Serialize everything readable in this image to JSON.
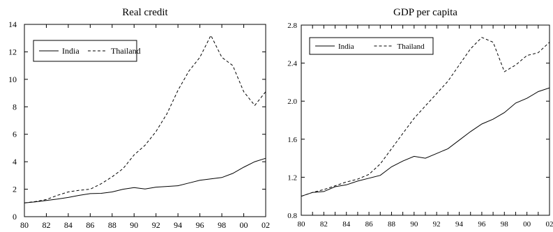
{
  "chart_data": [
    {
      "type": "line",
      "title": "Real credit",
      "xlabel": "",
      "ylabel": "",
      "x": [
        1980,
        1981,
        1982,
        1983,
        1984,
        1985,
        1986,
        1987,
        1988,
        1989,
        1990,
        1991,
        1992,
        1993,
        1994,
        1995,
        1996,
        1997,
        1998,
        1999,
        2000,
        2001,
        2002
      ],
      "xlim": [
        1980,
        2002
      ],
      "ylim": [
        0,
        14
      ],
      "x_ticks": [
        1980,
        1982,
        1984,
        1986,
        1988,
        1990,
        1992,
        1994,
        1996,
        1998,
        2000,
        2002
      ],
      "x_tick_labels": [
        "80",
        "82",
        "84",
        "86",
        "88",
        "90",
        "92",
        "94",
        "96",
        "98",
        "00",
        "02"
      ],
      "y_ticks": [
        0,
        2,
        4,
        6,
        8,
        10,
        12,
        14
      ],
      "y_tick_labels": [
        "0",
        "2",
        "4",
        "6",
        "8",
        "10",
        "12",
        "14"
      ],
      "legend_position": "top-left",
      "series": [
        {
          "name": "India",
          "style": "solid",
          "values": [
            1.0,
            1.08,
            1.18,
            1.28,
            1.4,
            1.55,
            1.68,
            1.7,
            1.8,
            2.0,
            2.12,
            2.02,
            2.15,
            2.2,
            2.25,
            2.45,
            2.65,
            2.75,
            2.85,
            3.15,
            3.6,
            4.0,
            4.25
          ]
        },
        {
          "name": "Thailand",
          "style": "dashed",
          "values": [
            1.0,
            1.1,
            1.25,
            1.55,
            1.8,
            1.92,
            2.0,
            2.4,
            2.9,
            3.5,
            4.5,
            5.2,
            6.2,
            7.5,
            9.2,
            10.6,
            11.6,
            13.2,
            11.6,
            11.0,
            9.1,
            8.1,
            9.1
          ]
        }
      ]
    },
    {
      "type": "line",
      "title": "GDP per capita",
      "xlabel": "",
      "ylabel": "",
      "x": [
        1980,
        1981,
        1982,
        1983,
        1984,
        1985,
        1986,
        1987,
        1988,
        1989,
        1990,
        1991,
        1992,
        1993,
        1994,
        1995,
        1996,
        1997,
        1998,
        1999,
        2000,
        2001,
        2002
      ],
      "xlim": [
        1980,
        2002
      ],
      "ylim": [
        0.8,
        2.8
      ],
      "x_ticks": [
        1980,
        1981,
        1982,
        1983,
        1984,
        1985,
        1986,
        1987,
        1988,
        1989,
        1990,
        1991,
        1992,
        1993,
        1994,
        1995,
        1996,
        1997,
        1998,
        1999,
        2000,
        2001,
        2002
      ],
      "x_tick_labels": [
        "80",
        "82",
        "84",
        "86",
        "88",
        "90",
        "92",
        "94",
        "96",
        "98",
        "00",
        "02"
      ],
      "x_labeled_ticks": [
        1980,
        1982,
        1984,
        1986,
        1988,
        1990,
        1992,
        1994,
        1996,
        1998,
        2000,
        2002
      ],
      "y_ticks": [
        0.8,
        1.2,
        1.6,
        2.0,
        2.4,
        2.8
      ],
      "y_tick_labels": [
        "0.8",
        "1.2",
        "1.6",
        "2.0",
        "2.4",
        "2.8"
      ],
      "legend_position": "top-left",
      "series": [
        {
          "name": "India",
          "style": "solid",
          "values": [
            1.0,
            1.04,
            1.05,
            1.1,
            1.12,
            1.16,
            1.19,
            1.22,
            1.31,
            1.37,
            1.42,
            1.4,
            1.45,
            1.5,
            1.59,
            1.68,
            1.76,
            1.81,
            1.88,
            1.98,
            2.03,
            2.1,
            2.14
          ]
        },
        {
          "name": "Thailand",
          "style": "dashed",
          "values": [
            1.0,
            1.04,
            1.07,
            1.11,
            1.15,
            1.18,
            1.23,
            1.34,
            1.5,
            1.66,
            1.82,
            1.95,
            2.08,
            2.21,
            2.38,
            2.55,
            2.67,
            2.62,
            2.31,
            2.38,
            2.48,
            2.51,
            2.62
          ]
        }
      ]
    }
  ]
}
